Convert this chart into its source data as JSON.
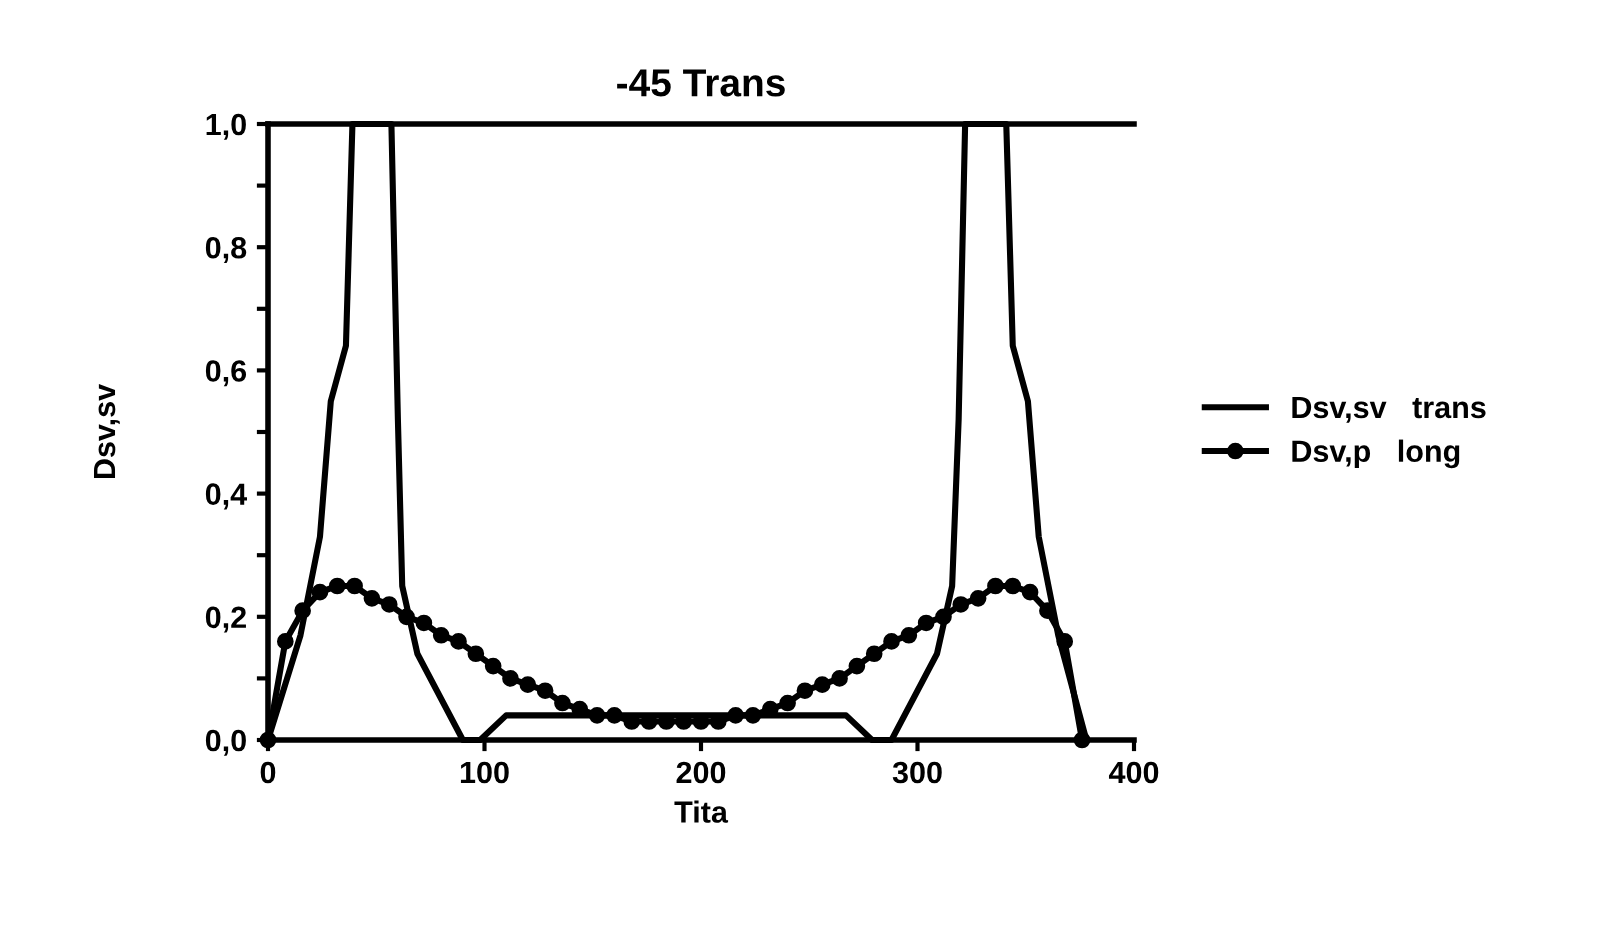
{
  "chart_data": {
    "type": "line",
    "title": "-45 Trans",
    "xlabel": "Tita",
    "ylabel": "Dsv,sv",
    "xlim": [
      0,
      400
    ],
    "xticks": [
      0,
      100,
      200,
      300,
      400
    ],
    "ylim": [
      0,
      1.0
    ],
    "yticks": [
      {
        "value": 0,
        "label": "0,0"
      },
      {
        "value": 0.1,
        "label": null
      },
      {
        "value": 0.2,
        "label": "0,2"
      },
      {
        "value": 0.3,
        "label": null
      },
      {
        "value": 0.4,
        "label": "0,4"
      },
      {
        "value": 0.5,
        "label": null
      },
      {
        "value": 0.6,
        "label": "0,6"
      },
      {
        "value": 0.7,
        "label": null
      },
      {
        "value": 0.8,
        "label": "0,8"
      },
      {
        "value": 0.9,
        "label": null
      },
      {
        "value": 1.0,
        "label": "1,0"
      }
    ],
    "grid": false,
    "legend": "right",
    "series": [
      {
        "name": "Dsv,sv   trans",
        "color": "#000000",
        "marker": "none",
        "x": [
          0,
          15,
          24,
          29,
          36,
          39,
          57,
          60,
          62,
          69,
          90,
          98,
          110,
          267,
          279,
          288,
          309,
          316,
          319,
          322,
          341,
          344,
          351,
          356,
          365,
          378
        ],
        "values": [
          0,
          0.17,
          0.33,
          0.55,
          0.64,
          1.0,
          1.0,
          0.52,
          0.25,
          0.14,
          0,
          0,
          0.04,
          0.04,
          0,
          0,
          0.14,
          0.25,
          0.52,
          1.0,
          1.0,
          0.64,
          0.55,
          0.33,
          0.17,
          0
        ]
      },
      {
        "name": "Dsv,p   long",
        "color": "#000000",
        "marker": "circle",
        "x": [
          0,
          8,
          16,
          24,
          32,
          40,
          48,
          56,
          64,
          72,
          80,
          88,
          96,
          104,
          112,
          120,
          128,
          136,
          144,
          152,
          160,
          168,
          176,
          184,
          192,
          200,
          208,
          216,
          224,
          232,
          240,
          248,
          256,
          264,
          272,
          280,
          288,
          296,
          304,
          312,
          320,
          328,
          336,
          344,
          352,
          360,
          368,
          376
        ],
        "values": [
          0,
          0.16,
          0.21,
          0.24,
          0.25,
          0.25,
          0.23,
          0.22,
          0.2,
          0.19,
          0.17,
          0.16,
          0.14,
          0.12,
          0.1,
          0.09,
          0.08,
          0.06,
          0.05,
          0.04,
          0.04,
          0.03,
          0.03,
          0.03,
          0.03,
          0.03,
          0.03,
          0.04,
          0.04,
          0.05,
          0.06,
          0.08,
          0.09,
          0.1,
          0.12,
          0.14,
          0.16,
          0.17,
          0.19,
          0.2,
          0.22,
          0.23,
          0.25,
          0.25,
          0.24,
          0.21,
          0.16,
          0
        ]
      }
    ]
  }
}
